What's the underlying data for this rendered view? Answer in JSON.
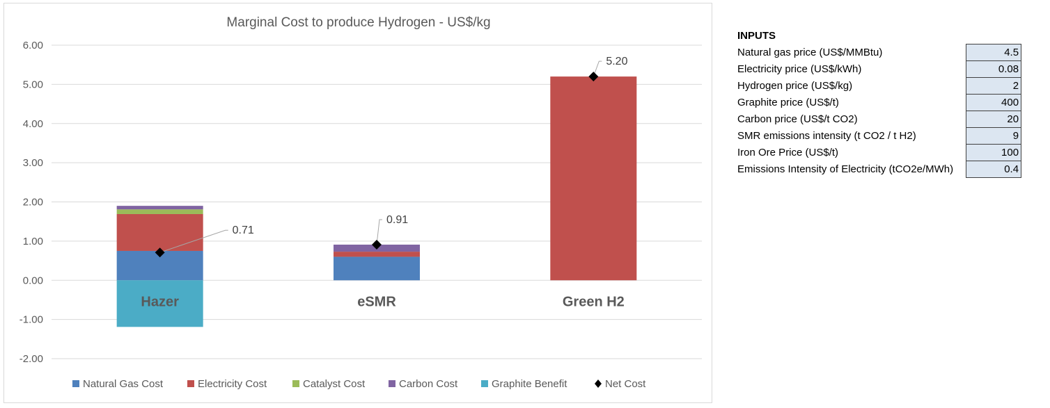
{
  "chart_data": {
    "type": "bar",
    "stacked": true,
    "title": "Marginal Cost to produce Hydrogen - US$/kg",
    "categories": [
      "Hazer",
      "eSMR",
      "Green H2"
    ],
    "ylim": [
      -2,
      6
    ],
    "yticks": [
      6,
      5,
      4,
      3,
      2,
      1,
      0,
      -1,
      -2
    ],
    "ytick_labels": [
      "6.00",
      "5.00",
      "4.00",
      "3.00",
      "2.00",
      "1.00",
      "0.00",
      "-1.00",
      "-2.00"
    ],
    "grid": true,
    "legend_position": "bottom",
    "series": [
      {
        "name": "Natural Gas Cost",
        "color": "#4f81bd",
        "values": [
          0.75,
          0.6,
          0
        ]
      },
      {
        "name": "Electricity Cost",
        "color": "#c0504d",
        "values": [
          0.94,
          0.13,
          5.2
        ]
      },
      {
        "name": "Catalyst Cost",
        "color": "#9bbb59",
        "values": [
          0.12,
          0,
          0
        ]
      },
      {
        "name": "Carbon Cost",
        "color": "#8064a2",
        "values": [
          0.09,
          0.18,
          0
        ]
      },
      {
        "name": "Graphite Benefit",
        "color": "#4bacc6",
        "values": [
          -1.19,
          0,
          0
        ]
      }
    ],
    "net_cost": {
      "name": "Net Cost",
      "color": "#000000",
      "values": [
        0.71,
        0.91,
        5.2
      ],
      "labels": [
        "0.71",
        "0.91",
        "5.20"
      ]
    }
  },
  "inputs": {
    "title": "INPUTS",
    "rows": [
      {
        "label": "Natural gas price (US$/MMBtu)",
        "value": "4.5"
      },
      {
        "label": "Electricity price (US$/kWh)",
        "value": "0.08"
      },
      {
        "label": "Hydrogen price (US$/kg)",
        "value": "2"
      },
      {
        "label": "Graphite price (US$/t)",
        "value": "400"
      },
      {
        "label": "Carbon price (US$/t CO2)",
        "value": "20"
      },
      {
        "label": "SMR emissions intensity (t CO2 / t H2)",
        "value": "9"
      },
      {
        "label": "Iron Ore Price (US$/t)",
        "value": "100"
      },
      {
        "label": "Emissions Intensity of Electricity (tCO2e/MWh)",
        "value": "0.4"
      }
    ]
  }
}
